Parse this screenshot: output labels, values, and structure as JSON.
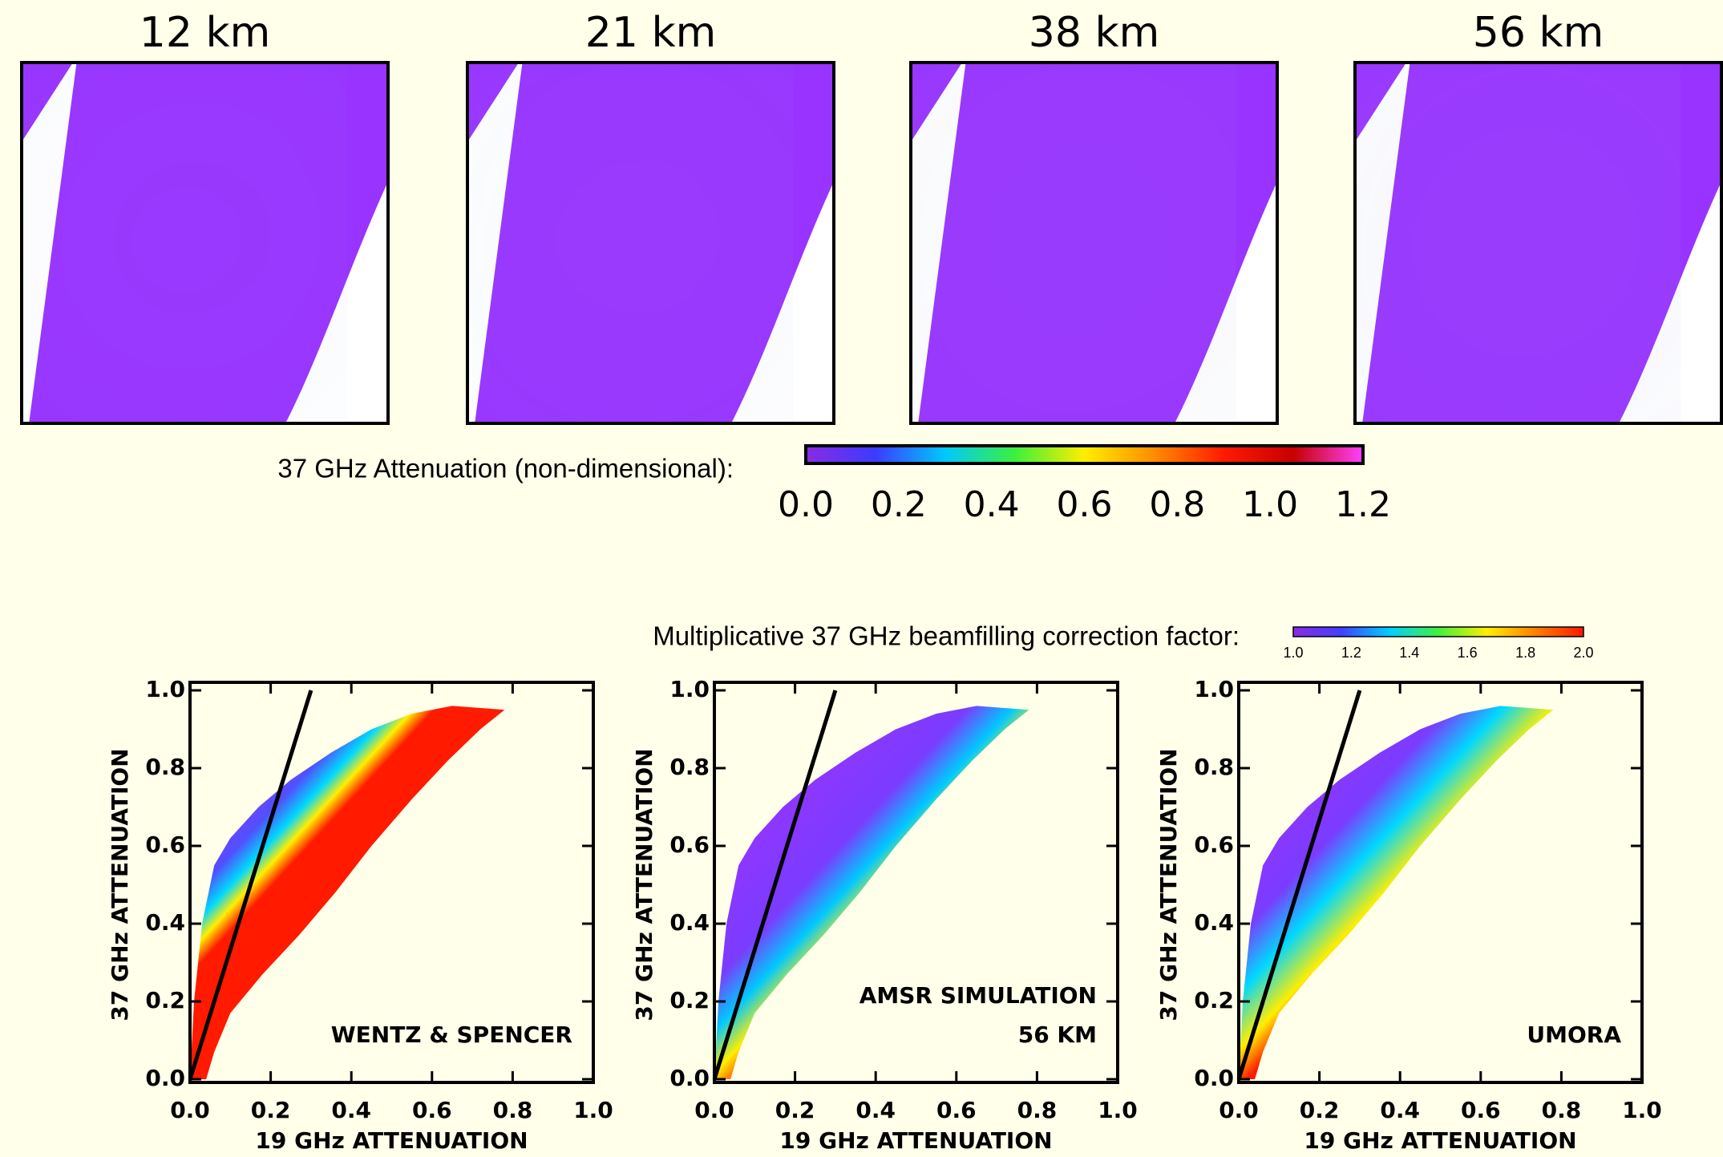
{
  "maps": {
    "titles": [
      "12 km",
      "21 km",
      "38 km",
      "56 km"
    ]
  },
  "attenuation_colorbar": {
    "label": "37 GHz Attenuation (non-dimensional):",
    "lim": [
      0,
      1.2
    ],
    "ticks": [
      {
        "value": 0,
        "label": "0.0"
      },
      0.2,
      0.4,
      0.6,
      0.8,
      {
        "value": 1,
        "label": "1.0"
      },
      1.2
    ],
    "colors": [
      "#8a2be2",
      "#3b3bff",
      "#00c8ff",
      "#3cf03c",
      "#ffee00",
      "#ff8c00",
      "#ff1a00",
      "#c80000",
      "#ff40ff"
    ]
  },
  "correction_colorbar": {
    "label": "Multiplicative 37 GHz beamfilling correction factor:",
    "lim": [
      1,
      2
    ],
    "ticks": [
      {
        "value": 1,
        "label": "1.0"
      },
      1.2,
      1.4,
      1.6,
      1.8,
      {
        "value": 2,
        "label": "2.0"
      }
    ],
    "colors": [
      "#8a2be2",
      "#4040ff",
      "#00d0ff",
      "#40f040",
      "#ffee00",
      "#ff8000",
      "#ff1a00"
    ]
  },
  "chart_data": [
    {
      "type": "scatter",
      "xlabel": "19 GHz ATTENUATION",
      "ylabel": "37 GHz ATTENUATION",
      "annotations": [
        "WENTZ & SPENCER"
      ],
      "xlim": [
        0,
        1
      ],
      "ylim": [
        0,
        1
      ],
      "xticks": [
        {
          "value": 0,
          "label": "0.0"
        },
        0.2,
        0.4,
        0.6,
        0.8,
        {
          "value": 1,
          "label": "1.0"
        }
      ],
      "yticks": [
        {
          "value": 0,
          "label": "0.0"
        },
        0.2,
        0.4,
        0.6,
        0.8,
        {
          "value": 1,
          "label": "1.0"
        }
      ],
      "reference_line": {
        "x": [
          0,
          0.3
        ],
        "y": [
          0,
          1
        ]
      }
    },
    {
      "type": "scatter",
      "xlabel": "19 GHz ATTENUATION",
      "ylabel": "37 GHz ATTENUATION",
      "annotations": [
        "AMSR SIMULATION",
        "56 KM"
      ],
      "xlim": [
        0,
        1
      ],
      "ylim": [
        0,
        1
      ],
      "xticks": [
        {
          "value": 0,
          "label": "0.0"
        },
        0.2,
        0.4,
        0.6,
        0.8,
        {
          "value": 1,
          "label": "1.0"
        }
      ],
      "yticks": [
        {
          "value": 0,
          "label": "0.0"
        },
        0.2,
        0.4,
        0.6,
        0.8,
        {
          "value": 1,
          "label": "1.0"
        }
      ],
      "reference_line": {
        "x": [
          0,
          0.3
        ],
        "y": [
          0,
          1
        ]
      }
    },
    {
      "type": "scatter",
      "xlabel": "19 GHz ATTENUATION",
      "ylabel": "37 GHz ATTENUATION",
      "annotations": [
        "UMORA"
      ],
      "xlim": [
        0,
        1
      ],
      "ylim": [
        0,
        1
      ],
      "xticks": [
        {
          "value": 0,
          "label": "0.0"
        },
        0.2,
        0.4,
        0.6,
        0.8,
        {
          "value": 1,
          "label": "1.0"
        }
      ],
      "yticks": [
        {
          "value": 0,
          "label": "0.0"
        },
        0.2,
        0.4,
        0.6,
        0.8,
        {
          "value": 1,
          "label": "1.0"
        }
      ],
      "reference_line": {
        "x": [
          0,
          0.3
        ],
        "y": [
          0,
          1
        ]
      }
    }
  ]
}
